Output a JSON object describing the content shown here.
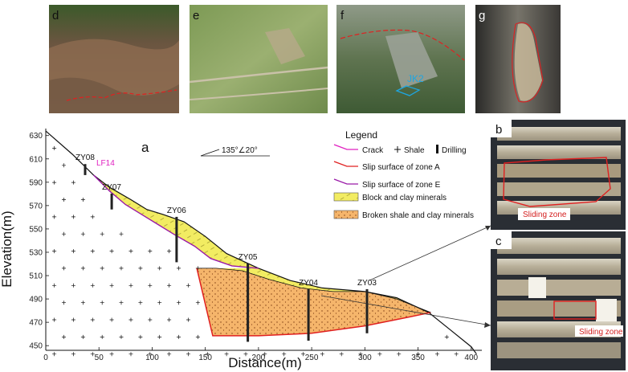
{
  "panel_label": "a",
  "axes": {
    "x_title": "Distance(m)",
    "y_title": "Elevation(m)",
    "x_ticks": [
      0,
      50,
      100,
      150,
      200,
      250,
      300,
      350,
      400
    ],
    "y_ticks": [
      450,
      470,
      490,
      510,
      530,
      550,
      570,
      590,
      610,
      630
    ],
    "x_range": [
      0,
      410
    ],
    "y_range": [
      442,
      636
    ]
  },
  "orientation": "135°∠20°",
  "crack_label": "LF14",
  "legend": {
    "title": "Legend",
    "items": [
      {
        "key": "crack",
        "label": "Crack"
      },
      {
        "key": "shale",
        "label": "Shale"
      },
      {
        "key": "drilling",
        "label": "Drilling"
      },
      {
        "key": "slip_a",
        "label": "Slip surface of zone A"
      },
      {
        "key": "slip_e",
        "label": "Slip surface of zone E"
      },
      {
        "key": "block",
        "label": "Block and clay minerals"
      },
      {
        "key": "broken",
        "label": "Broken shale and clay minerals"
      }
    ]
  },
  "boreholes": [
    {
      "name": "ZY08",
      "x": 37,
      "top": 607,
      "bottom": 598
    },
    {
      "name": "ZY07",
      "x": 62,
      "top": 583,
      "bottom": 570
    },
    {
      "name": "ZY06",
      "x": 123,
      "top": 564,
      "bottom": 527
    },
    {
      "name": "ZY05",
      "x": 190,
      "top": 526,
      "bottom": 462
    },
    {
      "name": "ZY04",
      "x": 247,
      "top": 505,
      "bottom": 463
    },
    {
      "name": "ZY03",
      "x": 302,
      "top": 505,
      "bottom": 469
    }
  ],
  "profile": {
    "ground": [
      [
        0,
        634
      ],
      [
        25,
        615
      ],
      [
        45,
        598
      ],
      [
        60,
        588
      ],
      [
        80,
        578
      ],
      [
        95,
        570
      ],
      [
        110,
        566
      ],
      [
        130,
        560
      ],
      [
        150,
        548
      ],
      [
        170,
        534
      ],
      [
        200,
        522
      ],
      [
        230,
        512
      ],
      [
        260,
        506
      ],
      [
        300,
        503
      ],
      [
        330,
        498
      ],
      [
        360,
        486
      ],
      [
        380,
        472
      ],
      [
        400,
        458
      ],
      [
        405,
        452
      ]
    ],
    "slip_e": [
      [
        45,
        598
      ],
      [
        60,
        585
      ],
      [
        75,
        574
      ],
      [
        90,
        566
      ],
      [
        105,
        558
      ],
      [
        120,
        550
      ],
      [
        140,
        540
      ],
      [
        155,
        530
      ],
      [
        175,
        524
      ],
      [
        200,
        522
      ]
    ],
    "zone_a_top": [
      [
        142,
        522
      ],
      [
        160,
        522
      ],
      [
        185,
        520
      ],
      [
        210,
        513
      ],
      [
        240,
        506
      ],
      [
        270,
        503
      ],
      [
        300,
        503
      ],
      [
        330,
        497
      ],
      [
        362,
        486
      ]
    ],
    "slip_a": [
      [
        142,
        522
      ],
      [
        157,
        467
      ],
      [
        200,
        467
      ],
      [
        250,
        469
      ],
      [
        300,
        475
      ],
      [
        340,
        482
      ],
      [
        362,
        486
      ]
    ]
  },
  "photos": [
    {
      "letter": "d"
    },
    {
      "letter": "e"
    },
    {
      "letter": "f",
      "marker_label": "JK2"
    },
    {
      "letter": "g"
    },
    {
      "letter": "b",
      "caption": "Sliding zone"
    },
    {
      "letter": "c",
      "caption": "Sliding zone"
    }
  ],
  "colors": {
    "block_fill": "#f2ec62",
    "broken_fill": "#f5b56b",
    "slip_a": "#e02020",
    "slip_e": "#9a1aa8",
    "crack": "#e020c0"
  }
}
